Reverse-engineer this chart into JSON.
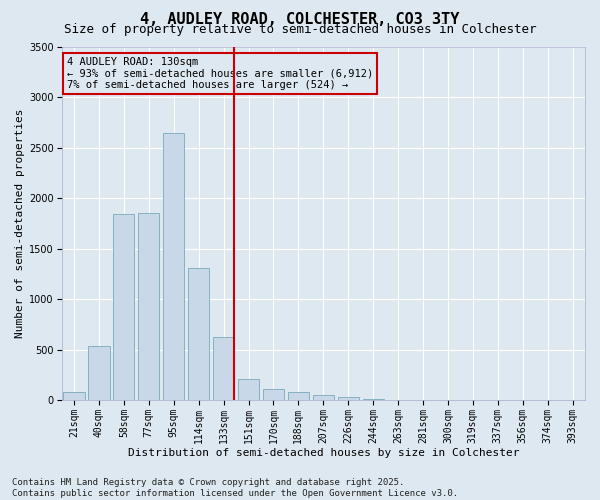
{
  "title": "4, AUDLEY ROAD, COLCHESTER, CO3 3TY",
  "subtitle": "Size of property relative to semi-detached houses in Colchester",
  "xlabel": "Distribution of semi-detached houses by size in Colchester",
  "ylabel": "Number of semi-detached properties",
  "categories": [
    "21sqm",
    "40sqm",
    "58sqm",
    "77sqm",
    "95sqm",
    "114sqm",
    "133sqm",
    "151sqm",
    "170sqm",
    "188sqm",
    "207sqm",
    "226sqm",
    "244sqm",
    "263sqm",
    "281sqm",
    "300sqm",
    "319sqm",
    "337sqm",
    "356sqm",
    "374sqm",
    "393sqm"
  ],
  "values": [
    80,
    540,
    1840,
    1850,
    2640,
    1310,
    630,
    210,
    110,
    80,
    55,
    30,
    15,
    8,
    4,
    2,
    1,
    1,
    0,
    0,
    0
  ],
  "bar_color": "#c8d8e8",
  "bar_edge_color": "#7aaabb",
  "vline_bin": 6,
  "vline_color": "#cc0000",
  "ylim": [
    0,
    3500
  ],
  "yticks": [
    0,
    500,
    1000,
    1500,
    2000,
    2500,
    3000,
    3500
  ],
  "annotation_line1": "4 AUDLEY ROAD: 130sqm",
  "annotation_line2": "← 93% of semi-detached houses are smaller (6,912)",
  "annotation_line3": "7% of semi-detached houses are larger (524) →",
  "annotation_box_color": "#cc0000",
  "footer": "Contains HM Land Registry data © Crown copyright and database right 2025.\nContains public sector information licensed under the Open Government Licence v3.0.",
  "background_color": "#dde8f0",
  "grid_color": "#ffffff",
  "title_fontsize": 11,
  "subtitle_fontsize": 9,
  "axis_label_fontsize": 8,
  "tick_fontsize": 7,
  "footer_fontsize": 6.5,
  "annotation_fontsize": 7.5
}
